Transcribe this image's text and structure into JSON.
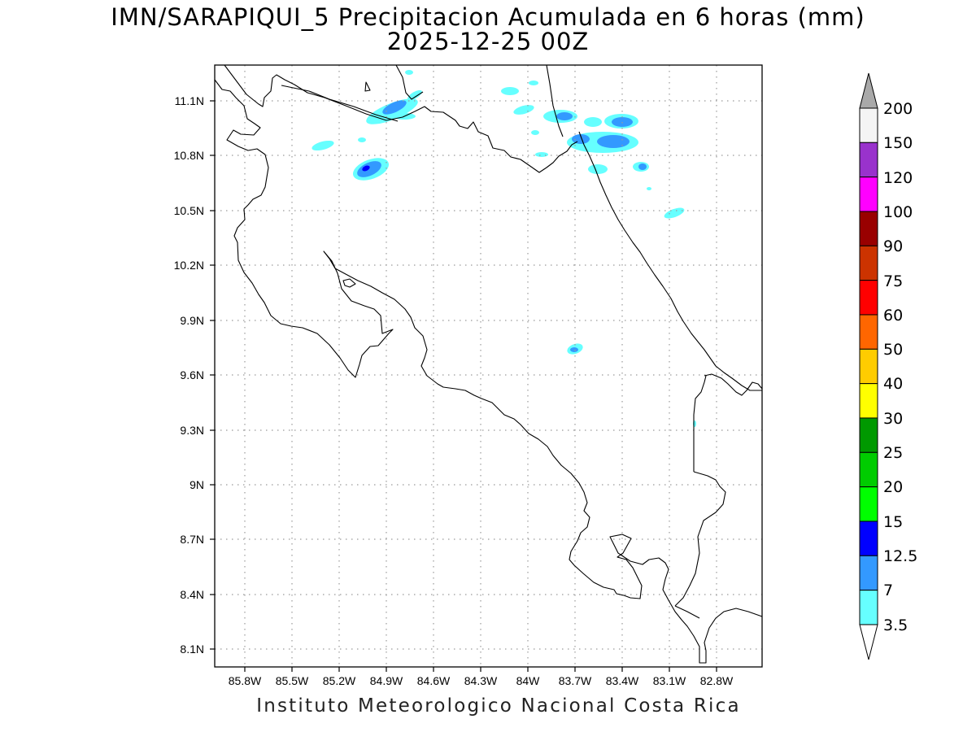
{
  "title": {
    "line1": "IMN/SARAPIQUI_5 Precipitacion Acumulada en 6 horas (mm)",
    "line2": "2025-12-25 00Z"
  },
  "credit": "Instituto Meteorologico Nacional Costa Rica",
  "axes": {
    "lon_ticks": [
      "85.8W",
      "85.5W",
      "85.2W",
      "84.9W",
      "84.6W",
      "84.3W",
      "84W",
      "83.7W",
      "83.4W",
      "83.1W",
      "82.8W"
    ],
    "lat_ticks": [
      "11.1N",
      "10.8N",
      "10.5N",
      "10.2N",
      "9.9N",
      "9.6N",
      "9.3N",
      "9N",
      "8.7N",
      "8.4N",
      "8.1N"
    ],
    "grid": "dotted"
  },
  "legend": {
    "labels": [
      "200",
      "150",
      "120",
      "100",
      "90",
      "75",
      "60",
      "50",
      "40",
      "30",
      "25",
      "20",
      "15",
      "12.5",
      "7",
      "3.5"
    ],
    "colors": [
      "#f4f4f4",
      "#9932cc",
      "#ff00ff",
      "#990000",
      "#cc3300",
      "#ff0000",
      "#ff6600",
      "#ffcc00",
      "#ffff00",
      "#009900",
      "#00cc00",
      "#00ff00",
      "#0000ff",
      "#3399ff",
      "#66ffff"
    ],
    "over_color": "#a9a9a9",
    "under_color": "#ffffff"
  },
  "precip_colors": {
    "light": "#66ffff",
    "medium": "#3399ff",
    "heavy": "#0000ff"
  }
}
